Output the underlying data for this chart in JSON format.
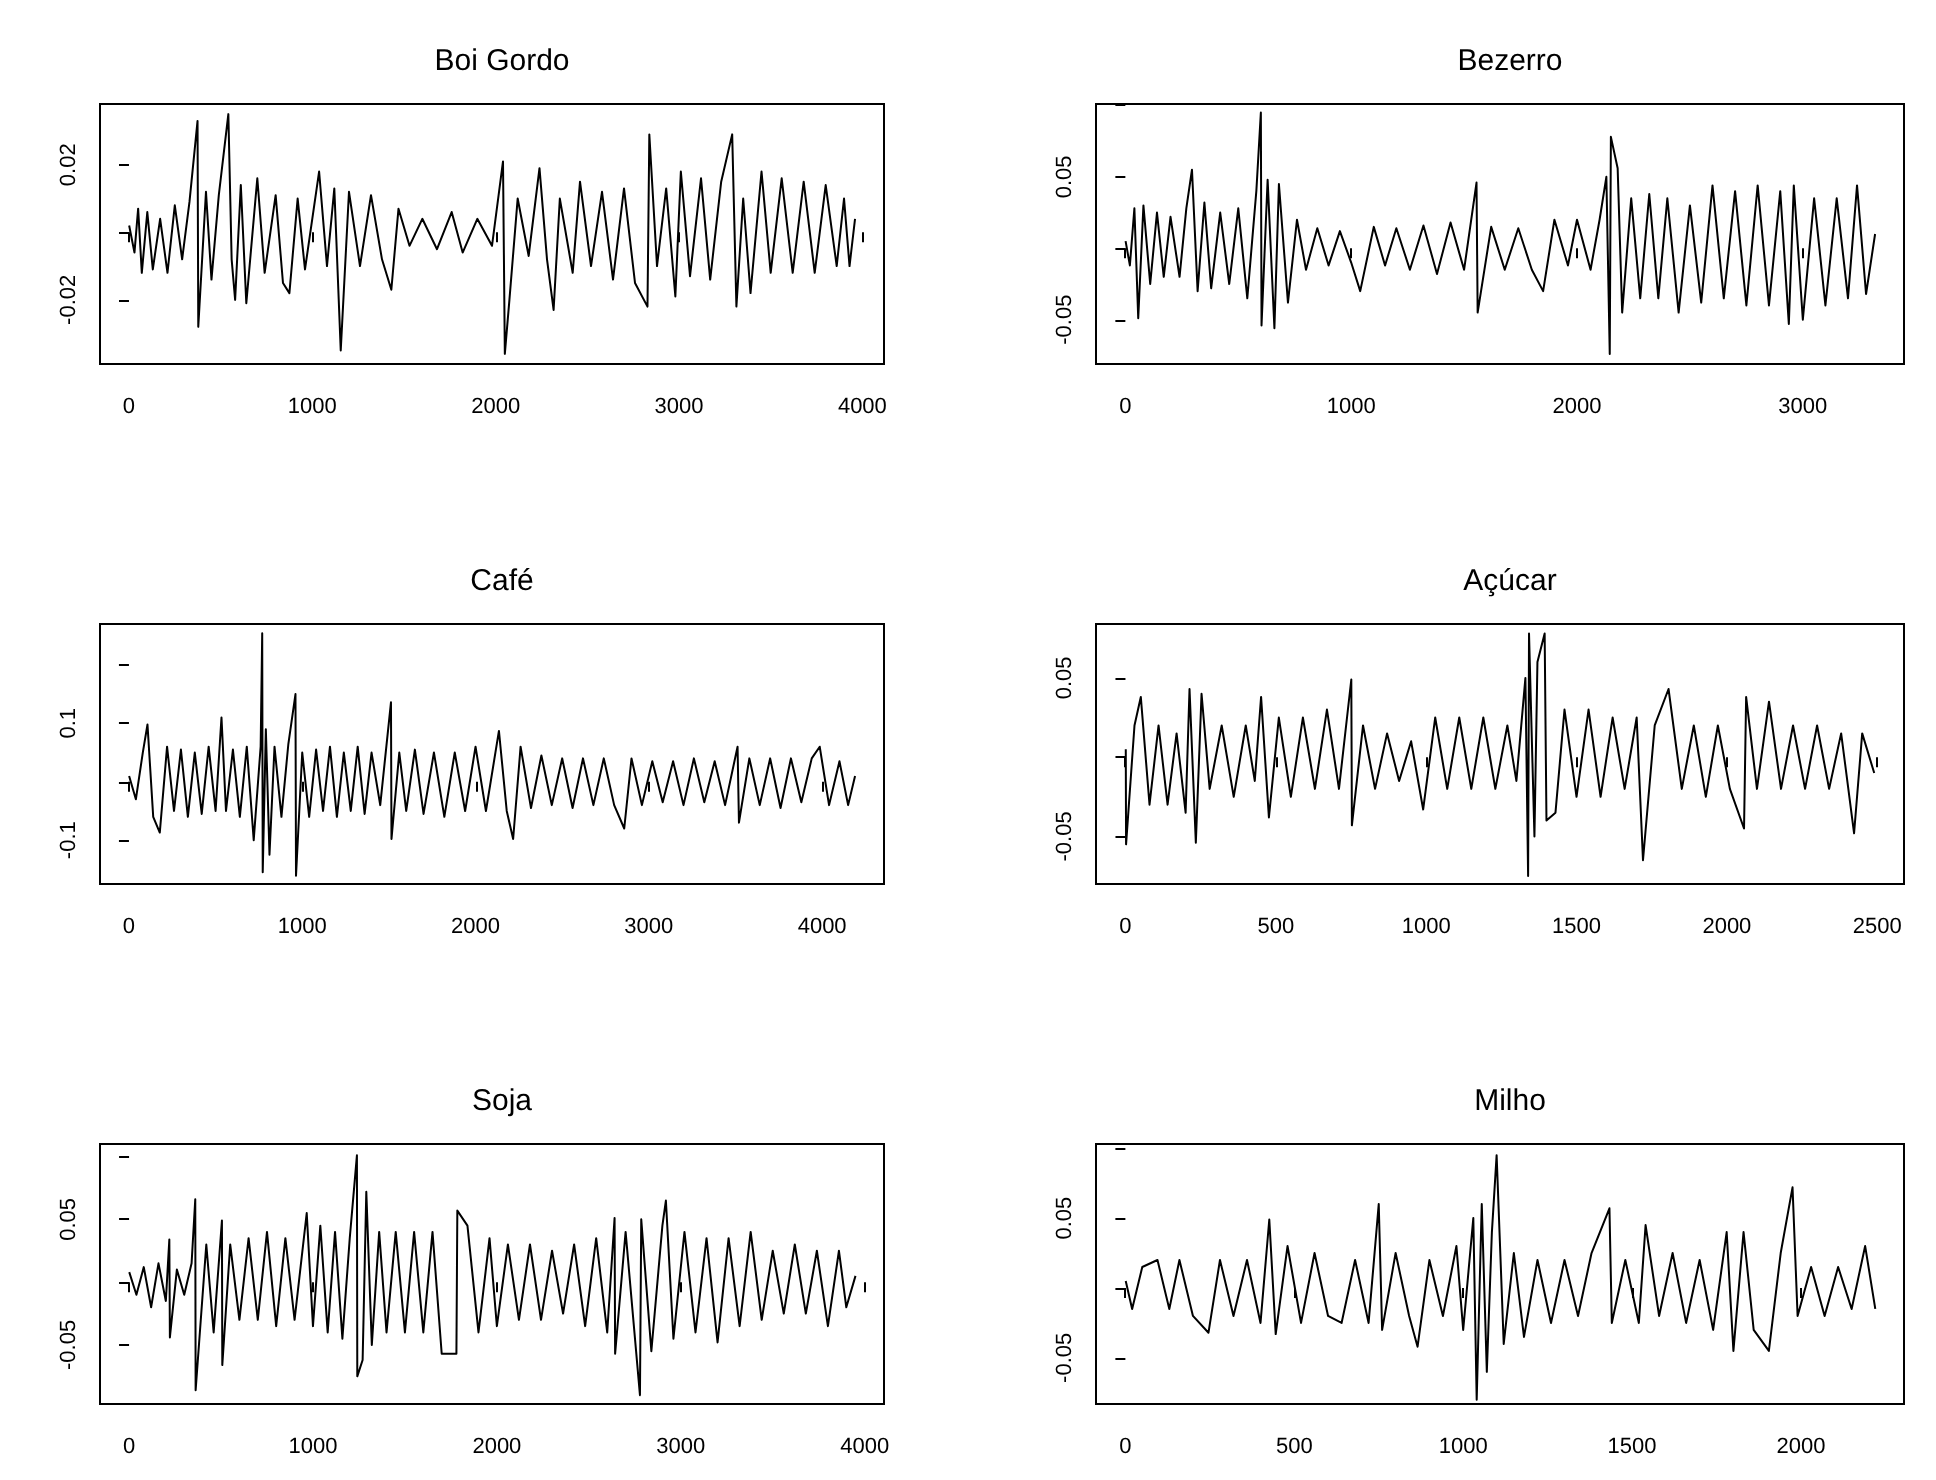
{
  "chart_data": [
    {
      "type": "line",
      "title": "Boi Gordo",
      "xlim": [
        -158,
        4118
      ],
      "xticks": [
        0,
        1000,
        2000,
        3000,
        4000
      ],
      "ylim": [
        -0.039,
        0.038
      ],
      "yticks": [
        -0.02,
        {
          "value": 0,
          "label": null
        },
        0.02
      ],
      "series": [
        {
          "color": "#000000",
          "x": [
            1,
            30,
            50,
            70,
            100,
            130,
            170,
            210,
            250,
            290,
            330,
            374,
            378,
            420,
            450,
            490,
            542,
            560,
            579,
            610,
            640,
            700,
            740,
            800,
            840,
            875,
            920,
            960,
            1037,
            1080,
            1120,
            1155,
            1200,
            1260,
            1320,
            1380,
            1431,
            1470,
            1530,
            1600,
            1680,
            1760,
            1820,
            1900,
            1980,
            2040,
            2050,
            2075,
            2120,
            2180,
            2239,
            2280,
            2316,
            2350,
            2420,
            2460,
            2520,
            2580,
            2640,
            2700,
            2760,
            2828,
            2838,
            2880,
            2930,
            2980,
            3010,
            3060,
            3120,
            3170,
            3230,
            3290,
            3313,
            3350,
            3390,
            3450,
            3500,
            3560,
            3620,
            3680,
            3740,
            3800,
            3860,
            3900,
            3930,
            3960
          ],
          "values": [
            0.002,
            -0.006,
            0.007,
            -0.012,
            0.006,
            -0.011,
            0.004,
            -0.012,
            0.008,
            -0.008,
            0.009,
            0.033,
            -0.028,
            0.012,
            -0.014,
            0.011,
            0.035,
            -0.008,
            -0.02,
            0.014,
            -0.021,
            0.016,
            -0.012,
            0.011,
            -0.015,
            -0.018,
            0.01,
            -0.011,
            0.018,
            -0.01,
            0.013,
            -0.035,
            0.012,
            -0.01,
            0.011,
            -0.008,
            -0.017,
            0.007,
            -0.004,
            0.004,
            -0.005,
            0.006,
            -0.006,
            0.004,
            -0.004,
            0.021,
            -0.036,
            -0.02,
            0.01,
            -0.007,
            0.019,
            -0.008,
            -0.023,
            0.01,
            -0.012,
            0.015,
            -0.01,
            0.012,
            -0.014,
            0.013,
            -0.015,
            -0.022,
            0.029,
            -0.01,
            0.013,
            -0.019,
            0.018,
            -0.013,
            0.016,
            -0.014,
            0.015,
            0.029,
            -0.022,
            0.01,
            -0.018,
            0.018,
            -0.012,
            0.016,
            -0.012,
            0.015,
            -0.012,
            0.014,
            -0.01,
            0.01,
            -0.01,
            0.004
          ]
        }
      ]
    },
    {
      "type": "line",
      "title": "Bezerro",
      "xlim": [
        -130,
        3448
      ],
      "xticks": [
        0,
        1000,
        2000,
        3000
      ],
      "ylim": [
        -0.081,
        0.101
      ],
      "yticks": [
        -0.05,
        {
          "value": 0,
          "label": null
        },
        0.05,
        {
          "value": 0.1,
          "label": null
        }
      ],
      "series": [
        {
          "color": "#000000",
          "x": [
            1,
            20,
            40,
            57,
            80,
            110,
            140,
            170,
            200,
            240,
            270,
            295,
            320,
            350,
            380,
            420,
            460,
            500,
            540,
            580,
            600,
            603,
            630,
            660,
            680,
            720,
            760,
            800,
            850,
            900,
            950,
            1000,
            1040,
            1100,
            1150,
            1200,
            1260,
            1320,
            1380,
            1440,
            1500,
            1555,
            1560,
            1620,
            1680,
            1740,
            1800,
            1850,
            1900,
            1960,
            2000,
            2060,
            2100,
            2130,
            2145,
            2150,
            2180,
            2200,
            2240,
            2280,
            2320,
            2360,
            2400,
            2450,
            2500,
            2550,
            2600,
            2650,
            2700,
            2750,
            2800,
            2850,
            2900,
            2938,
            2960,
            3000,
            3050,
            3100,
            3150,
            3200,
            3240,
            3280,
            3320
          ],
          "values": [
            0.005,
            -0.012,
            0.028,
            -0.049,
            0.03,
            -0.025,
            0.025,
            -0.02,
            0.022,
            -0.02,
            0.028,
            0.055,
            -0.03,
            0.032,
            -0.028,
            0.025,
            -0.025,
            0.028,
            -0.035,
            0.04,
            0.095,
            -0.054,
            0.048,
            -0.056,
            0.045,
            -0.038,
            0.02,
            -0.015,
            0.014,
            -0.012,
            0.012,
            -0.01,
            -0.03,
            0.015,
            -0.012,
            0.014,
            -0.015,
            0.016,
            -0.018,
            0.018,
            -0.015,
            0.046,
            -0.045,
            0.015,
            -0.015,
            0.014,
            -0.015,
            -0.03,
            0.02,
            -0.012,
            0.02,
            -0.015,
            0.02,
            0.05,
            -0.074,
            0.078,
            0.056,
            -0.045,
            0.035,
            -0.035,
            0.038,
            -0.035,
            0.035,
            -0.045,
            0.03,
            -0.038,
            0.044,
            -0.035,
            0.04,
            -0.04,
            0.044,
            -0.04,
            0.04,
            -0.053,
            0.044,
            -0.05,
            0.035,
            -0.04,
            0.035,
            -0.035,
            0.044,
            -0.032,
            0.01
          ]
        }
      ]
    },
    {
      "type": "line",
      "title": "Café",
      "xlim": [
        -167,
        4357
      ],
      "xticks": [
        0,
        1000,
        2000,
        3000,
        4000
      ],
      "ylim": [
        -0.175,
        0.27
      ],
      "yticks": [
        -0.1,
        {
          "value": 0,
          "label": null
        },
        0.1,
        {
          "value": 0.2,
          "label": null
        }
      ],
      "series": [
        {
          "color": "#000000",
          "x": [
            1,
            40,
            80,
            107,
            140,
            178,
            220,
            260,
            300,
            340,
            380,
            420,
            460,
            500,
            534,
            560,
            600,
            640,
            680,
            720,
            760,
            769,
            772,
            790,
            811,
            840,
            880,
            920,
            961,
            964,
            1000,
            1040,
            1080,
            1120,
            1160,
            1200,
            1240,
            1280,
            1320,
            1360,
            1400,
            1450,
            1512,
            1515,
            1560,
            1600,
            1650,
            1700,
            1760,
            1820,
            1880,
            1940,
            2000,
            2060,
            2135,
            2180,
            2217,
            2260,
            2320,
            2380,
            2440,
            2500,
            2560,
            2620,
            2680,
            2740,
            2800,
            2858,
            2900,
            2960,
            3020,
            3080,
            3140,
            3200,
            3260,
            3320,
            3380,
            3440,
            3512,
            3520,
            3580,
            3640,
            3700,
            3760,
            3820,
            3880,
            3940,
            3986,
            4040,
            4100,
            4150,
            4190
          ],
          "values": [
            0.01,
            -0.03,
            0.05,
            0.098,
            -0.06,
            -0.087,
            0.06,
            -0.05,
            0.055,
            -0.06,
            0.05,
            -0.055,
            0.06,
            -0.05,
            0.11,
            -0.05,
            0.055,
            -0.06,
            0.06,
            -0.1,
            0.06,
            0.254,
            -0.155,
            0.09,
            -0.125,
            0.06,
            -0.06,
            0.065,
            0.15,
            -0.161,
            0.05,
            -0.06,
            0.055,
            -0.05,
            0.06,
            -0.06,
            0.05,
            -0.05,
            0.06,
            -0.055,
            0.05,
            -0.04,
            0.136,
            -0.098,
            0.05,
            -0.05,
            0.055,
            -0.055,
            0.05,
            -0.06,
            0.05,
            -0.05,
            0.06,
            -0.05,
            0.087,
            -0.05,
            -0.098,
            0.06,
            -0.045,
            0.045,
            -0.04,
            0.04,
            -0.045,
            0.04,
            -0.04,
            0.04,
            -0.04,
            -0.08,
            0.04,
            -0.04,
            0.035,
            -0.035,
            0.035,
            -0.04,
            0.04,
            -0.035,
            0.035,
            -0.04,
            0.06,
            -0.07,
            0.04,
            -0.04,
            0.04,
            -0.045,
            0.04,
            -0.035,
            0.04,
            0.06,
            -0.04,
            0.035,
            -0.04,
            0.01
          ]
        }
      ]
    },
    {
      "type": "line",
      "title": "Açúcar",
      "xlim": [
        -98,
        2589
      ],
      "xticks": [
        0,
        500,
        1000,
        1500,
        2000,
        2500
      ],
      "ylim": [
        -0.08,
        0.084
      ],
      "yticks": [
        -0.05,
        {
          "value": 0,
          "label": null
        },
        0.05
      ],
      "series": [
        {
          "color": "#000000",
          "x": [
            1,
            2,
            30,
            51,
            80,
            110,
            140,
            170,
            200,
            213,
            234,
            253,
            280,
            320,
            360,
            400,
            430,
            451,
            477,
            510,
            550,
            590,
            630,
            670,
            710,
            751,
            753,
            790,
            830,
            870,
            910,
            950,
            990,
            1030,
            1070,
            1110,
            1150,
            1190,
            1230,
            1270,
            1300,
            1330,
            1339,
            1342,
            1360,
            1370,
            1394,
            1400,
            1430,
            1460,
            1500,
            1540,
            1580,
            1620,
            1660,
            1700,
            1721,
            1760,
            1806,
            1850,
            1890,
            1930,
            1970,
            2010,
            2057,
            2064,
            2100,
            2140,
            2180,
            2220,
            2260,
            2300,
            2340,
            2380,
            2423,
            2450,
            2490
          ],
          "values": [
            0.005,
            -0.055,
            0.02,
            0.038,
            -0.03,
            0.02,
            -0.03,
            0.015,
            -0.035,
            0.043,
            -0.054,
            0.04,
            -0.02,
            0.02,
            -0.025,
            0.02,
            -0.015,
            0.038,
            -0.038,
            0.025,
            -0.025,
            0.025,
            -0.02,
            0.03,
            -0.02,
            0.049,
            -0.043,
            0.02,
            -0.02,
            0.015,
            -0.015,
            0.01,
            -0.033,
            0.025,
            -0.02,
            0.025,
            -0.02,
            0.025,
            -0.02,
            0.02,
            -0.015,
            0.05,
            -0.075,
            0.078,
            -0.05,
            0.06,
            0.078,
            -0.04,
            -0.035,
            0.03,
            -0.025,
            0.03,
            -0.025,
            0.025,
            -0.02,
            0.025,
            -0.065,
            0.02,
            0.043,
            -0.02,
            0.02,
            -0.025,
            0.02,
            -0.02,
            -0.045,
            0.038,
            -0.02,
            0.035,
            -0.02,
            0.02,
            -0.02,
            0.02,
            -0.02,
            0.015,
            -0.048,
            0.015,
            -0.01
          ]
        }
      ]
    },
    {
      "type": "line",
      "title": "Soja",
      "xlim": [
        -158,
        4105
      ],
      "xticks": [
        0,
        1000,
        2000,
        3000,
        4000
      ],
      "ylim": [
        -0.097,
        0.11
      ],
      "yticks": [
        -0.05,
        {
          "value": 0,
          "label": null
        },
        0.05,
        {
          "value": 0.1,
          "label": null
        }
      ],
      "series": [
        {
          "color": "#000000",
          "x": [
            1,
            40,
            80,
            120,
            160,
            200,
            219,
            222,
            260,
            300,
            340,
            360,
            362,
            380,
            420,
            460,
            505,
            507,
            550,
            600,
            650,
            700,
            750,
            800,
            850,
            900,
            966,
            1000,
            1040,
            1080,
            1120,
            1160,
            1200,
            1239,
            1241,
            1270,
            1290,
            1320,
            1360,
            1400,
            1450,
            1500,
            1550,
            1600,
            1650,
            1700,
            1780,
            1785,
            1840,
            1900,
            1960,
            2000,
            2060,
            2120,
            2180,
            2240,
            2300,
            2360,
            2420,
            2480,
            2540,
            2600,
            2640,
            2643,
            2700,
            2778,
            2785,
            2840,
            2900,
            2919,
            2960,
            3020,
            3080,
            3140,
            3200,
            3260,
            3320,
            3380,
            3440,
            3500,
            3560,
            3620,
            3680,
            3740,
            3800,
            3860,
            3900,
            3950
          ],
          "values": [
            0.008,
            -0.01,
            0.012,
            -0.02,
            0.015,
            -0.015,
            0.034,
            -0.044,
            0.01,
            -0.01,
            0.015,
            0.066,
            -0.086,
            -0.05,
            0.03,
            -0.04,
            0.049,
            -0.066,
            0.03,
            -0.03,
            0.035,
            -0.03,
            0.04,
            -0.035,
            0.035,
            -0.03,
            0.055,
            -0.035,
            0.045,
            -0.04,
            0.04,
            -0.045,
            0.035,
            0.101,
            -0.075,
            -0.062,
            0.072,
            -0.05,
            0.04,
            -0.04,
            0.04,
            -0.04,
            0.04,
            -0.04,
            0.04,
            -0.057,
            -0.057,
            0.057,
            0.045,
            -0.04,
            0.035,
            -0.035,
            0.03,
            -0.03,
            0.03,
            -0.03,
            0.025,
            -0.025,
            0.03,
            -0.035,
            0.035,
            -0.04,
            0.051,
            -0.057,
            0.04,
            -0.09,
            0.05,
            -0.055,
            0.045,
            0.065,
            -0.045,
            0.04,
            -0.04,
            0.035,
            -0.048,
            0.035,
            -0.035,
            0.04,
            -0.03,
            0.025,
            -0.025,
            0.03,
            -0.025,
            0.025,
            -0.035,
            0.025,
            -0.02,
            0.005
          ]
        }
      ]
    },
    {
      "type": "line",
      "title": "Milho",
      "xlim": [
        -87,
        2305
      ],
      "xticks": [
        0,
        500,
        1000,
        1500,
        2000
      ],
      "ylim": [
        -0.083,
        0.103
      ],
      "yticks": [
        -0.05,
        {
          "value": 0,
          "label": null
        },
        0.05,
        {
          "value": 0.1,
          "label": null
        }
      ],
      "series": [
        {
          "color": "#000000",
          "x": [
            1,
            20,
            50,
            95,
            130,
            160,
            200,
            246,
            280,
            320,
            360,
            400,
            426,
            445,
            480,
            520,
            560,
            600,
            640,
            680,
            720,
            750,
            760,
            800,
            840,
            865,
            900,
            940,
            980,
            1000,
            1030,
            1040,
            1055,
            1070,
            1085,
            1099,
            1120,
            1150,
            1180,
            1220,
            1260,
            1300,
            1340,
            1380,
            1433,
            1440,
            1480,
            1520,
            1540,
            1580,
            1620,
            1660,
            1700,
            1740,
            1780,
            1800,
            1830,
            1860,
            1905,
            1940,
            1975,
            1990,
            2030,
            2070,
            2110,
            2150,
            2190,
            2220
          ],
          "values": [
            0.005,
            -0.015,
            0.015,
            0.02,
            -0.015,
            0.02,
            -0.02,
            -0.032,
            0.02,
            -0.02,
            0.02,
            -0.025,
            0.049,
            -0.033,
            0.03,
            -0.025,
            0.025,
            -0.02,
            -0.025,
            0.02,
            -0.025,
            0.06,
            -0.03,
            0.025,
            -0.02,
            -0.042,
            0.02,
            -0.02,
            0.03,
            -0.03,
            0.05,
            -0.08,
            0.06,
            -0.06,
            0.04,
            0.095,
            -0.04,
            0.025,
            -0.035,
            0.02,
            -0.025,
            0.02,
            -0.02,
            0.025,
            0.057,
            -0.025,
            0.02,
            -0.025,
            0.045,
            -0.02,
            0.025,
            -0.025,
            0.02,
            -0.03,
            0.04,
            -0.045,
            0.04,
            -0.03,
            -0.045,
            0.025,
            0.072,
            -0.02,
            0.015,
            -0.02,
            0.015,
            -0.015,
            0.03,
            -0.015
          ]
        }
      ]
    }
  ]
}
